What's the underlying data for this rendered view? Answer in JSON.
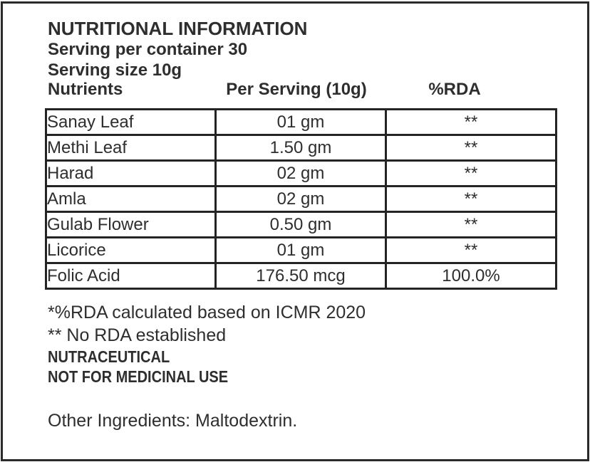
{
  "label": {
    "title": "NUTRITIONAL INFORMATION",
    "serving_per_container": "Serving per container 30",
    "serving_size": "Serving size 10g"
  },
  "table": {
    "columns": [
      "Nutrients",
      "Per Serving (10g)",
      "%RDA"
    ],
    "rows": [
      {
        "nutrient": "Sanay Leaf",
        "per_serving": "01 gm",
        "rda": "**"
      },
      {
        "nutrient": "Methi Leaf",
        "per_serving": "1.50 gm",
        "rda": "**"
      },
      {
        "nutrient": "Harad",
        "per_serving": "02 gm",
        "rda": "**"
      },
      {
        "nutrient": "Amla",
        "per_serving": "02 gm",
        "rda": "**"
      },
      {
        "nutrient": "Gulab Flower",
        "per_serving": "0.50 gm",
        "rda": "**"
      },
      {
        "nutrient": "Licorice",
        "per_serving": "01 gm",
        "rda": "**"
      },
      {
        "nutrient": "Folic Acid",
        "per_serving": "176.50 mcg",
        "rda": "100.0%"
      }
    ]
  },
  "footnotes": {
    "rda_note": "*%RDA calculated based on ICMR 2020",
    "no_rda_note": "** No RDA established",
    "category": "NUTRACEUTICAL",
    "disclaimer": "NOT FOR MEDICINAL USE"
  },
  "other_ingredients": "Other Ingredients: Maltodextrin.",
  "colors": {
    "text": "#2e2e2e",
    "border": "#242424",
    "background": "#ffffff"
  }
}
